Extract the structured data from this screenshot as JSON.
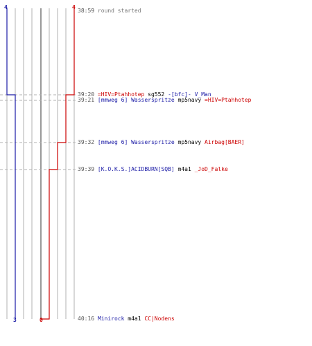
{
  "colors": {
    "blue_team": "#1a1aa6",
    "red_team": "#cc0000",
    "grid": "#b0b0b0",
    "center_line": "#555555",
    "event_dash": "#b0b0b0",
    "time": "#555555"
  },
  "scores": {
    "blue_start": "4",
    "red_start": "4",
    "blue_end": "3",
    "red_end": "0"
  },
  "events": [
    {
      "time": "38:59",
      "segments": [
        {
          "text": "round started",
          "team": "gray"
        }
      ]
    },
    {
      "time": "39:20",
      "segments": [
        {
          "text": "=HIV=Ptahhotep",
          "team": "red"
        },
        {
          "text": " sg552 ",
          "team": "black"
        },
        {
          "text": "-[bfc]- V_Man",
          "team": "blue"
        }
      ]
    },
    {
      "time": "39:21",
      "segments": [
        {
          "text": "[mmweg 6] Wasserspritze",
          "team": "blue"
        },
        {
          "text": " mp5navy ",
          "team": "black"
        },
        {
          "text": "=HIV=Ptahhotep",
          "team": "red"
        }
      ]
    },
    {
      "time": "39:32",
      "segments": [
        {
          "text": "[mmweg 6] Wasserspritze",
          "team": "blue"
        },
        {
          "text": " mp5navy ",
          "team": "black"
        },
        {
          "text": "Airbag[BAER]",
          "team": "red"
        }
      ]
    },
    {
      "time": "39:39",
      "segments": [
        {
          "text": "[K.O.K.S.]ACIDBURN[SQB]",
          "team": "blue"
        },
        {
          "text": " m4a1 ",
          "team": "black"
        },
        {
          "text": "_JoD_Falke",
          "team": "red"
        }
      ]
    },
    {
      "time": "40:16",
      "segments": [
        {
          "text": "Minirock",
          "team": "blue"
        },
        {
          "text": " m4a1 ",
          "team": "black"
        },
        {
          "text": "CC|Nodens",
          "team": "red"
        }
      ]
    }
  ]
}
